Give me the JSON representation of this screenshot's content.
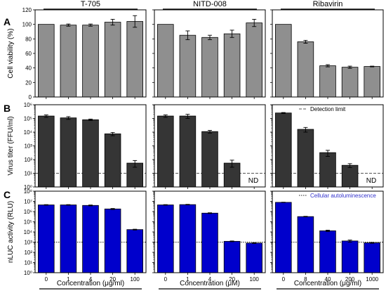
{
  "chart_data": [
    {
      "panel": "A",
      "row": "viability",
      "col": "T-705",
      "type": "bar",
      "group_title": "T-705",
      "ylabel": "Cell viability (%)",
      "ylim": [
        0,
        120
      ],
      "yticks": [
        0,
        20,
        40,
        60,
        80,
        100,
        120
      ],
      "categories": [
        "0",
        "1",
        "4",
        "20",
        "100"
      ],
      "values": [
        100,
        99,
        99,
        103,
        104
      ],
      "errors": [
        0,
        1.5,
        1.5,
        4,
        8
      ],
      "bar_color": "#8f8f8f"
    },
    {
      "panel": "",
      "row": "viability",
      "col": "NITD-008",
      "type": "bar",
      "group_title": "NITD-008",
      "ylim": [
        0,
        120
      ],
      "categories": [
        "0",
        "1",
        "4",
        "20",
        "100"
      ],
      "values": [
        100,
        85,
        82,
        87,
        102
      ],
      "errors": [
        0,
        6,
        3,
        5,
        5
      ],
      "bar_color": "#8f8f8f"
    },
    {
      "panel": "",
      "row": "viability",
      "col": "Ribavirin",
      "type": "bar",
      "group_title": "Ribavirin",
      "ylim": [
        0,
        120
      ],
      "categories": [
        "0",
        "8",
        "40",
        "200",
        "1000"
      ],
      "values": [
        100,
        76,
        43,
        41,
        42
      ],
      "errors": [
        0,
        2,
        1.5,
        1.5,
        0.5
      ],
      "bar_color": "#8f8f8f"
    },
    {
      "panel": "B",
      "row": "titer",
      "col": "T-705",
      "type": "bar",
      "log": true,
      "ylabel": "Virus titer (FFU/ml)",
      "ylim_exp": [
        0,
        6
      ],
      "ref_exp": 1,
      "categories": [
        "0",
        "1",
        "4",
        "20",
        "100"
      ],
      "values": [
        150000,
        110000,
        80000,
        7500,
        55
      ],
      "errors": [
        30000,
        25000,
        10000,
        2000,
        30
      ],
      "bar_color": "#353535"
    },
    {
      "panel": "",
      "row": "titer",
      "col": "NITD-008",
      "type": "bar",
      "log": true,
      "ylim_exp": [
        0,
        6
      ],
      "ref_exp": 1,
      "categories": [
        "0",
        "1",
        "4",
        "20",
        "100"
      ],
      "values": [
        150000,
        150000,
        11000,
        55,
        null
      ],
      "errors": [
        30000,
        50000,
        2500,
        35,
        null
      ],
      "bar_color": "#353535",
      "annotation": "ND"
    },
    {
      "panel": "",
      "row": "titer",
      "col": "Ribavirin",
      "type": "bar",
      "log": true,
      "ylim_exp": [
        0,
        6
      ],
      "ref_exp": 1,
      "categories": [
        "0",
        "8",
        "40",
        "200",
        "1000"
      ],
      "values": [
        250000,
        16000,
        320,
        38,
        null
      ],
      "errors": [
        20000,
        6000,
        150,
        12,
        null
      ],
      "bar_color": "#353535",
      "annotation": "ND",
      "legend": "Detection limit"
    },
    {
      "panel": "C",
      "row": "nluc",
      "col": "T-705",
      "type": "bar",
      "log": true,
      "ylabel": "nLUC activity (RLU)",
      "ylim_exp": [
        0,
        8
      ],
      "ref_exp": 3,
      "xlabel": "Concentration (μg/ml)",
      "categories": [
        "0",
        "1",
        "4",
        "20",
        "100"
      ],
      "values": [
        4500000,
        4500000,
        4000000,
        1800000,
        17000
      ],
      "errors": [
        300000,
        300000,
        400000,
        200000,
        1500
      ],
      "bar_color": "#0000cc"
    },
    {
      "panel": "",
      "row": "nluc",
      "col": "NITD-008",
      "type": "bar",
      "log": true,
      "ylim_exp": [
        0,
        8
      ],
      "ref_exp": 3,
      "xlabel": "Concentration (μM)",
      "categories": [
        "0",
        "1",
        "4",
        "20",
        "100"
      ],
      "values": [
        4500000,
        4800000,
        700000,
        1200,
        800
      ],
      "errors": [
        300000,
        300000,
        60000,
        100,
        60
      ],
      "bar_color": "#0000cc"
    },
    {
      "panel": "",
      "row": "nluc",
      "col": "Ribavirin",
      "type": "bar",
      "log": true,
      "ylim_exp": [
        0,
        8
      ],
      "ref_exp": 3,
      "xlabel": "Concentration (μg/ml)",
      "categories": [
        "0",
        "8",
        "40",
        "200",
        "1000"
      ],
      "values": [
        8000000,
        320000,
        13000,
        1300,
        850
      ],
      "errors": [
        300000,
        20000,
        2000,
        300,
        80
      ],
      "bar_color": "#0000cc",
      "legend": "Cellular autoluminescence",
      "legend_color": "#3333cc"
    }
  ]
}
